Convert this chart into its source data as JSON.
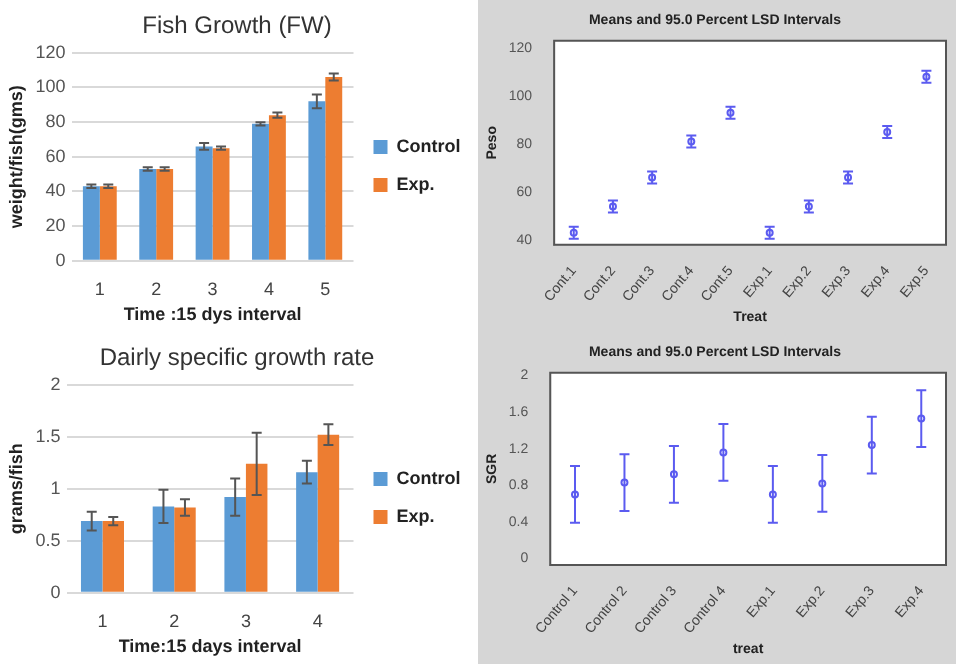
{
  "chart_data": [
    {
      "type": "bar",
      "title": "Fish Growth (FW)",
      "xlabel": "Time :15 dys interval",
      "ylabel": "weight/fish(gms)",
      "categories": [
        "1",
        "2",
        "3",
        "4",
        "5"
      ],
      "series": [
        {
          "name": "Control",
          "color": "#5b9bd5",
          "values": [
            43,
            53,
            66,
            79,
            92
          ],
          "errors": [
            1,
            1,
            2,
            1,
            4
          ]
        },
        {
          "name": "Exp.",
          "color": "#ed7d31",
          "values": [
            43,
            53,
            65,
            84,
            106
          ],
          "errors": [
            1,
            1,
            1,
            1.5,
            2
          ]
        }
      ],
      "ylim": [
        0,
        120
      ],
      "yticks": [
        0,
        20,
        40,
        60,
        80,
        100,
        120
      ],
      "grid": "y",
      "legend": "right"
    },
    {
      "type": "scatter",
      "title": "Means and 95.0 Percent LSD Intervals",
      "xlabel": "Treat",
      "ylabel": "Peso",
      "categories": [
        "Cont.1",
        "Cont.2",
        "Cont.3",
        "Cont.4",
        "Cont.5",
        "Exp.1",
        "Exp.2",
        "Exp.3",
        "Exp.4",
        "Exp.5"
      ],
      "series": [
        {
          "color": "#5b5bf0",
          "values": [
            43,
            54,
            66,
            81,
            93,
            43,
            54,
            66,
            85,
            108
          ],
          "errors": [
            2.5,
            2.5,
            2.5,
            2.5,
            2.5,
            2.5,
            2.5,
            2.5,
            2.5,
            2.5
          ]
        }
      ],
      "ylim": [
        38,
        123
      ],
      "yticks": [
        40,
        60,
        80,
        100,
        120
      ],
      "marker": "circle"
    },
    {
      "type": "bar",
      "title": "Dairly specific growth rate",
      "xlabel": "Time:15 days interval",
      "ylabel": "grams/fish",
      "categories": [
        "1",
        "2",
        "3",
        "4"
      ],
      "series": [
        {
          "name": "Control",
          "color": "#5b9bd5",
          "values": [
            0.69,
            0.83,
            0.92,
            1.16
          ],
          "errors": [
            0.09,
            0.16,
            0.18,
            0.11
          ]
        },
        {
          "name": "Exp.",
          "color": "#ed7d31",
          "values": [
            0.69,
            0.82,
            1.24,
            1.52
          ],
          "errors": [
            0.04,
            0.08,
            0.3,
            0.1
          ]
        }
      ],
      "ylim": [
        0,
        2
      ],
      "yticks": [
        0,
        0.5,
        1,
        1.5,
        2
      ],
      "grid": "y",
      "legend": "right"
    },
    {
      "type": "scatter",
      "title": "Means and 95.0 Percent LSD Intervals",
      "xlabel": "treat",
      "ylabel": "SGR",
      "categories": [
        "Control 1",
        "Control 2",
        "Control 3",
        "Control 4",
        "Exp.1",
        "Exp.2",
        "Exp.3",
        "Exp.4"
      ],
      "series": [
        {
          "color": "#5b5bf0",
          "values": [
            0.7,
            0.83,
            0.92,
            1.16,
            0.7,
            0.82,
            1.24,
            1.53
          ],
          "errors": [
            0.31,
            0.31,
            0.31,
            0.31,
            0.31,
            0.31,
            0.31,
            0.31
          ]
        }
      ],
      "ylim": [
        -0.07,
        2.03
      ],
      "yticks": [
        0,
        0.4,
        0.8,
        1.2,
        1.6,
        2
      ],
      "marker": "circle"
    }
  ]
}
